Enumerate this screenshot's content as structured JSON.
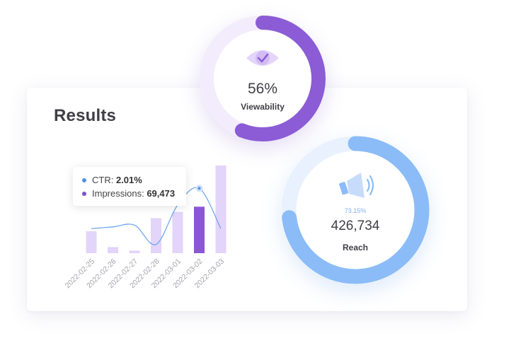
{
  "results": {
    "title": "Results"
  },
  "chart_data": {
    "type": "bar",
    "categories": [
      "2022-02-25",
      "2022-02-26",
      "2022-02-27",
      "2022-02-28",
      "2022-03-01",
      "2022-03-02",
      "2022-03-03"
    ],
    "series": [
      {
        "name": "Impressions",
        "values": [
          0.25,
          0.07,
          0.03,
          0.4,
          0.47,
          0.53,
          1.0
        ]
      },
      {
        "name": "CTR",
        "values": [
          0.28,
          0.3,
          0.32,
          0.1,
          0.55,
          0.74,
          0.28
        ]
      }
    ],
    "highlight_index": 5,
    "tooltip": {
      "ctr_label": "CTR:",
      "ctr_value": "2.01%",
      "impressions_label": "Impressions:",
      "impressions_value": "69,473"
    },
    "colors": {
      "bar": "#e3d4f9",
      "bar_active": "#8a56d6",
      "line": "#6ea8ef",
      "ctr_dot": "#4f90ee",
      "impressions_dot": "#7c50d0"
    }
  },
  "viewability": {
    "value": "56%",
    "label": "Viewability",
    "fraction": 0.56,
    "icon": "eye-icon",
    "color": "#8b5cd6",
    "track": "#f2ecfc"
  },
  "reach": {
    "percent": "73.15%",
    "value": "426,734",
    "label": "Reach",
    "fraction": 0.7315,
    "icon": "megaphone-icon",
    "color": "#8bbcf8",
    "track": "#e8f1fd"
  }
}
